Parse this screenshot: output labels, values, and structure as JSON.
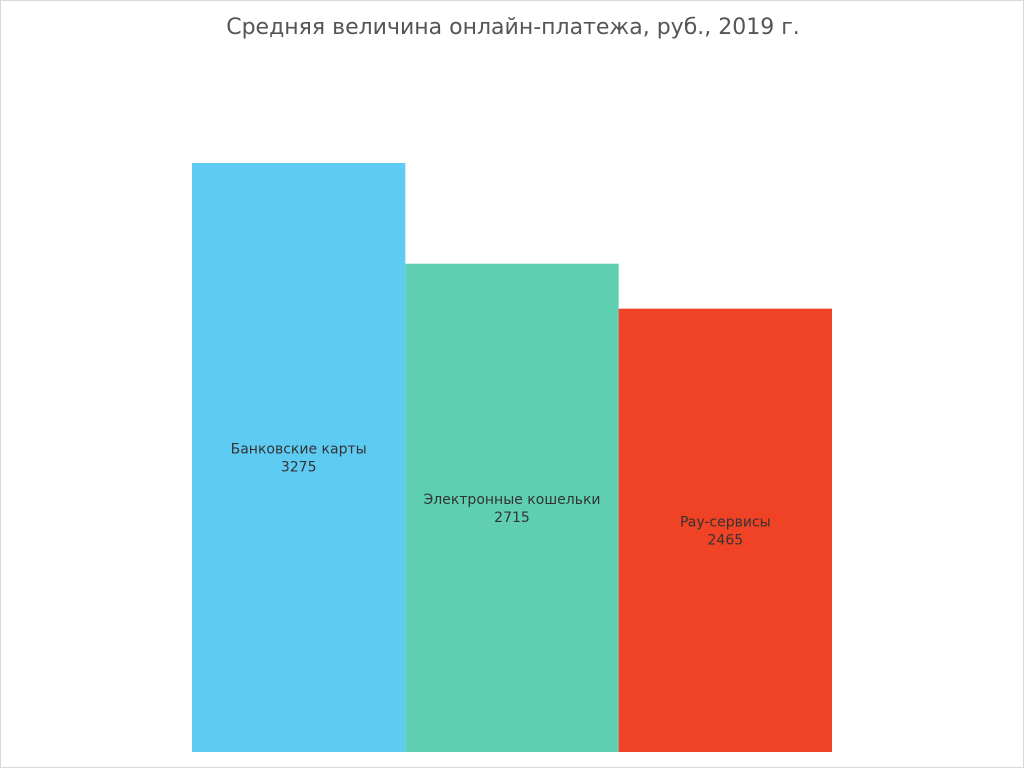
{
  "chart_data": {
    "type": "bar",
    "title": "Средняя величина онлайн-платежа, руб., 2019 г.",
    "categories": [
      "Банковские карты",
      "Электронные кошельки",
      "Pay-сервисы"
    ],
    "values": [
      3275,
      2715,
      2465
    ],
    "colors": [
      "#5ecbf2",
      "#5ecfb1",
      "#f04325"
    ],
    "label_color": "#333333",
    "ylim": [
      0,
      3275
    ],
    "grid": false,
    "legend": "none"
  }
}
